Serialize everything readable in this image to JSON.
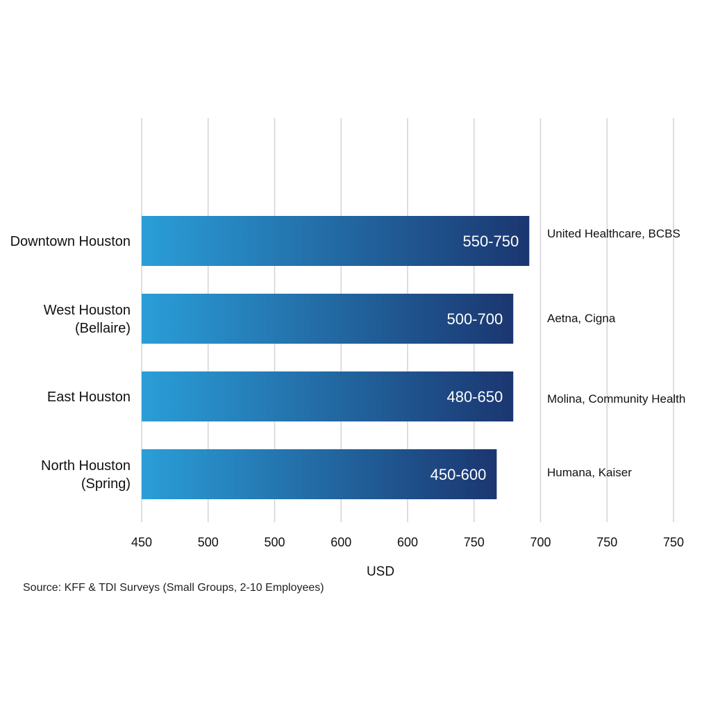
{
  "chart_data": {
    "type": "bar",
    "orientation": "horizontal",
    "categories": [
      "Downtown Houston",
      "West Houston (Bellaire)",
      "East Houston",
      "North Houston (Spring)"
    ],
    "category_lines": [
      [
        "Downtown Houston"
      ],
      [
        "West Houston",
        "(Bellaire)"
      ],
      [
        "East Houston"
      ],
      [
        "North Houston",
        "(Spring)"
      ]
    ],
    "value_labels": [
      "550-750",
      "500-700",
      "480-650",
      "450-600"
    ],
    "bar_fraction_of_axis": [
      0.726,
      0.696,
      0.696,
      0.665
    ],
    "annotations": [
      "United Healthcare, BCBS",
      "Aetna, Cigna",
      "Molina, Community Health",
      "Humana, Kaiser"
    ],
    "x_tick_labels": [
      "450",
      "500",
      "500",
      "600",
      "600",
      "750",
      "700",
      "750",
      "750"
    ],
    "xlabel": "USD",
    "ylabel": "",
    "grid": "vertical",
    "legend": "none",
    "colors": {
      "bar_start": "#2a9ed8",
      "bar_end": "#1b3670",
      "grid": "#d4d4d4"
    }
  },
  "source": "Source: KFF & TDI Surveys (Small Groups, 2-10 Employees)"
}
